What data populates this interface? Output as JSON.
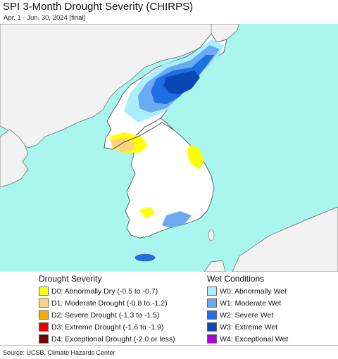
{
  "header": {
    "title": "SPI 3-Month Drought Severity (CHIRPS)",
    "subtitle": "Apr. 1 - Jun. 30, 2024 [final]"
  },
  "map": {
    "sea_color": "#a8f6ee",
    "land_color": "#f2f2f2",
    "korea_land_color": "#ffffff",
    "border_color": "#555555"
  },
  "legend": {
    "drought_title": "Drought Severity",
    "drought_items": [
      {
        "label": "D0: Abnormally Dry (-0.5 to -0.7)",
        "color": "#ffff00"
      },
      {
        "label": "D1: Moderate Drought (-0.8 to -1.2)",
        "color": "#fcd37f"
      },
      {
        "label": "D2: Severe Drought (-1.3 to -1.5)",
        "color": "#ffaa00"
      },
      {
        "label": "D3: Extreme Drought (-1.6 to -1.9)",
        "color": "#e60000"
      },
      {
        "label": "D4: Exceptional Drought (-2.0 or less)",
        "color": "#730000"
      }
    ],
    "wet_title": "Wet Conditions",
    "wet_items": [
      {
        "label": "W0: Abnormally Wet",
        "color": "#aaeeff"
      },
      {
        "label": "W1: Moderate Wet",
        "color": "#6aaaf0"
      },
      {
        "label": "W2: Severe Wet",
        "color": "#1e6ee6"
      },
      {
        "label": "W3: Extreme Wet",
        "color": "#0a46b4"
      },
      {
        "label": "W4: Exceptional Wet",
        "color": "#aa00e6"
      }
    ]
  },
  "footer": {
    "source": "Source: UCSB, Climate Hazards Center"
  }
}
